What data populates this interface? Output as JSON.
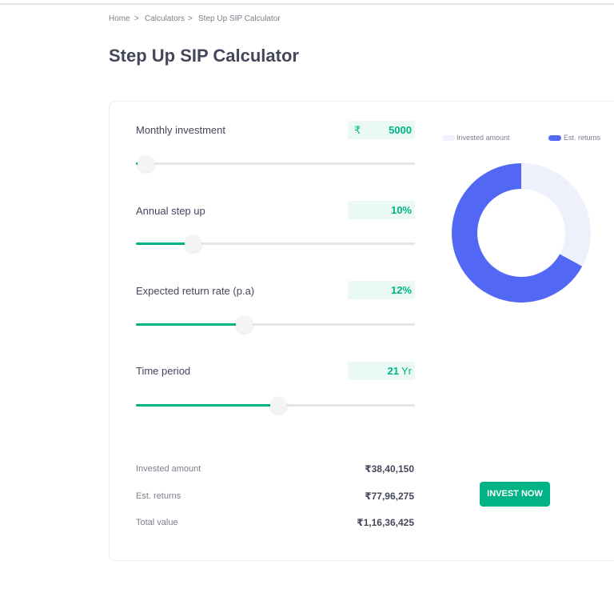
{
  "breadcrumb": [
    "Home",
    ">",
    "Calculators",
    ">",
    "Step Up SIP Calculator"
  ],
  "title": "Step Up SIP Calculator",
  "inputs": [
    {
      "label": "Monthly investment",
      "prefix": "₹",
      "value": "5000"
    },
    {
      "label": "Annual step up",
      "value": "10%"
    },
    {
      "label": "Expected return rate (p.a)",
      "value": "12%"
    },
    {
      "label": "Time period",
      "value": "21",
      "suffix": "Yr"
    }
  ],
  "summary": [
    {
      "label": "Invested amount",
      "value": 3840150,
      "value_label": "₹38,40,150",
      "color": "#eef0fc"
    },
    {
      "label": "Est. returns",
      "value": 7796275,
      "value_label": "₹77,96,275",
      "color": "#5367f5"
    },
    {
      "label": "Total value",
      "value": 11636425,
      "value_label": "₹1,16,36,425"
    }
  ],
  "button": "INVEST NOW"
}
